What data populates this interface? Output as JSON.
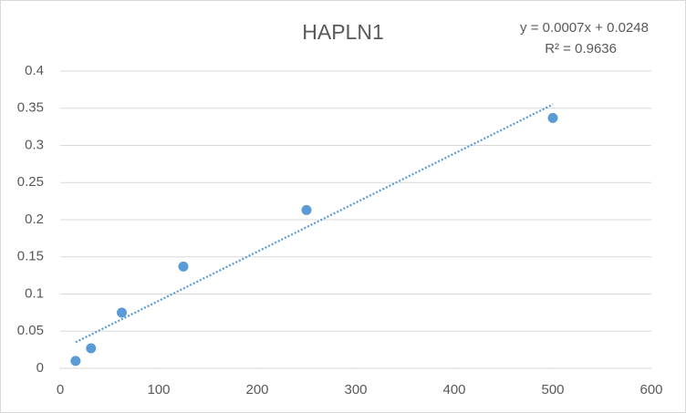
{
  "chart_data": {
    "type": "scatter",
    "title": "HAPLN1",
    "trendline_equation": "y = 0.0007x + 0.0248",
    "r_squared_label": "R² = 0.9636",
    "x": [
      15.625,
      31.25,
      62.5,
      125,
      250,
      500
    ],
    "values": [
      0.01,
      0.027,
      0.075,
      0.137,
      0.213,
      0.337
    ],
    "color": "#5b9bd5",
    "xlim": [
      0,
      600
    ],
    "xticks": [
      0,
      100,
      200,
      300,
      400,
      500,
      600
    ],
    "ylim": [
      0,
      0.4
    ],
    "yticks": [
      0,
      0.05,
      0.1,
      0.15,
      0.2,
      0.25,
      0.3,
      0.35,
      0.4
    ],
    "grid": true,
    "trendline": true
  }
}
